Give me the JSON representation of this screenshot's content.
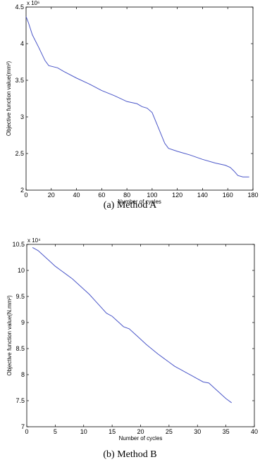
{
  "chart_data": [
    {
      "type": "line",
      "caption": "(a) Method A",
      "xlabel": "Number of cycles",
      "ylabel": "Objective function value(mm²)",
      "exponent_label": "x 10⁶",
      "xlim": [
        0,
        180
      ],
      "ylim": [
        2,
        4.5
      ],
      "xticks": [
        0,
        20,
        40,
        60,
        80,
        100,
        120,
        140,
        160,
        180
      ],
      "yticks": [
        2,
        2.5,
        3,
        3.5,
        4,
        4.5
      ],
      "series_color": "#4a56c8",
      "x": [
        0,
        2,
        5,
        10,
        15,
        18,
        25,
        30,
        40,
        50,
        60,
        70,
        80,
        88,
        92,
        96,
        100,
        105,
        110,
        113,
        120,
        130,
        140,
        150,
        158,
        162,
        165,
        168,
        172,
        177
      ],
      "y": [
        4.37,
        4.28,
        4.12,
        3.95,
        3.77,
        3.7,
        3.67,
        3.62,
        3.53,
        3.45,
        3.36,
        3.29,
        3.21,
        3.18,
        3.14,
        3.12,
        3.06,
        2.85,
        2.64,
        2.57,
        2.53,
        2.48,
        2.42,
        2.37,
        2.34,
        2.31,
        2.26,
        2.2,
        2.18,
        2.18
      ]
    },
    {
      "type": "line",
      "caption": "(b) Method B",
      "xlabel": "Number of cycles",
      "ylabel": "Objective function value(N.mm²)",
      "exponent_label": "x 10⁴",
      "xlim": [
        0,
        40
      ],
      "ylim": [
        7,
        10.5
      ],
      "xticks": [
        0,
        5,
        10,
        15,
        20,
        25,
        30,
        35,
        40
      ],
      "yticks": [
        7,
        7.5,
        8,
        8.5,
        9,
        9.5,
        10,
        10.5
      ],
      "series_color": "#4a56c8",
      "x": [
        1,
        2,
        3,
        4,
        5,
        6,
        7,
        8,
        9,
        10,
        11,
        12,
        13,
        14,
        15,
        16,
        17,
        18,
        19,
        20,
        21,
        22,
        23,
        24,
        25,
        26,
        27,
        28,
        29,
        30,
        31,
        32,
        33,
        34,
        35,
        36
      ],
      "y": [
        10.44,
        10.38,
        10.28,
        10.18,
        10.08,
        10.0,
        9.92,
        9.84,
        9.74,
        9.64,
        9.54,
        9.42,
        9.3,
        9.18,
        9.12,
        9.02,
        8.92,
        8.88,
        8.78,
        8.68,
        8.58,
        8.49,
        8.4,
        8.32,
        8.24,
        8.16,
        8.1,
        8.04,
        7.98,
        7.92,
        7.86,
        7.84,
        7.74,
        7.64,
        7.54,
        7.46
      ]
    }
  ]
}
